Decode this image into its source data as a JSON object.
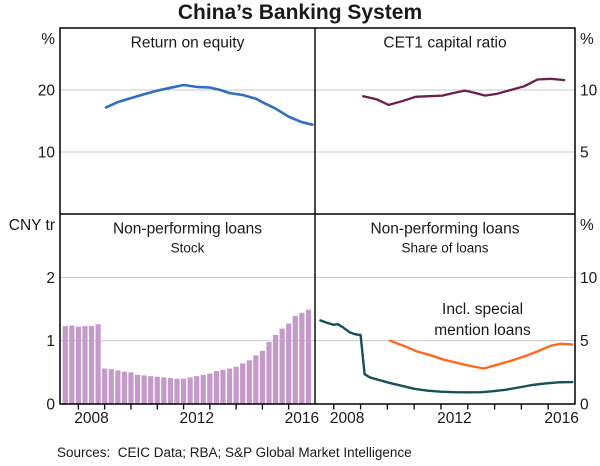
{
  "title": "China’s Banking System",
  "footer": {
    "sources": "Sources:  CEIC Data; RBA; S&P Global Market Intelligence"
  },
  "colors": {
    "blue": "#2f6ec0",
    "maroon": "#6d1e4a",
    "purple": "#c59aca",
    "teal": "#17505a",
    "orange": "#fb6a1d",
    "grid": "#c8c8c8",
    "frame": "#000000",
    "text": "#1a1a1a"
  },
  "chart_data": [
    {
      "id": "return-on-equity",
      "type": "line",
      "title": "Return on equity",
      "subtitle": "",
      "unit": "%",
      "unit_side": "left",
      "ylim": [
        0,
        30
      ],
      "gridlines": [
        10,
        20
      ],
      "yticks": [
        {
          "v": 20,
          "label": "20"
        },
        {
          "v": 10,
          "label": "10"
        }
      ],
      "xlim": [
        2007.3,
        2017.0
      ],
      "xticks": [],
      "xtick_labels": [],
      "series": [
        {
          "id": "roe-line",
          "name": "Return on equity",
          "kind": "line",
          "color": "blue",
          "width": 2.6,
          "points": [
            [
              2009.05,
              17.2
            ],
            [
              2009.5,
              18.05
            ],
            [
              2010.0,
              18.7
            ],
            [
              2010.5,
              19.3
            ],
            [
              2011.0,
              19.9
            ],
            [
              2011.5,
              20.35
            ],
            [
              2012.0,
              20.8
            ],
            [
              2012.5,
              20.5
            ],
            [
              2013.0,
              20.4
            ],
            [
              2013.4,
              20.0
            ],
            [
              2013.75,
              19.5
            ],
            [
              2014.25,
              19.2
            ],
            [
              2014.75,
              18.6
            ],
            [
              2015.1,
              17.8
            ],
            [
              2015.5,
              17.0
            ],
            [
              2016.0,
              15.7
            ],
            [
              2016.5,
              14.8
            ],
            [
              2016.9,
              14.4
            ]
          ]
        }
      ]
    },
    {
      "id": "cet1-capital-ratio",
      "type": "line",
      "title": "CET1 capital ratio",
      "subtitle": "",
      "unit": "%",
      "unit_side": "right",
      "ylim": [
        0,
        15
      ],
      "gridlines": [
        5,
        10
      ],
      "yticks": [
        {
          "v": 10,
          "label": "10"
        },
        {
          "v": 5,
          "label": "5"
        }
      ],
      "xlim": [
        2007.3,
        2017.0
      ],
      "xticks": [],
      "xtick_labels": [],
      "series": [
        {
          "id": "cet1-line",
          "name": "CET1 capital ratio",
          "kind": "line",
          "color": "maroon",
          "width": 2.3,
          "points": [
            [
              2009.1,
              9.5
            ],
            [
              2009.6,
              9.25
            ],
            [
              2010.05,
              8.8
            ],
            [
              2010.55,
              9.1
            ],
            [
              2011.05,
              9.45
            ],
            [
              2011.55,
              9.5
            ],
            [
              2012.05,
              9.55
            ],
            [
              2012.55,
              9.8
            ],
            [
              2012.9,
              9.95
            ],
            [
              2013.3,
              9.75
            ],
            [
              2013.65,
              9.55
            ],
            [
              2014.1,
              9.7
            ],
            [
              2014.6,
              10.0
            ],
            [
              2015.1,
              10.3
            ],
            [
              2015.6,
              10.85
            ],
            [
              2016.1,
              10.9
            ],
            [
              2016.6,
              10.8
            ]
          ]
        }
      ]
    },
    {
      "id": "npl-stock",
      "type": "bar",
      "title": "Non-performing loans",
      "subtitle": "Stock",
      "unit": "CNY tr",
      "unit_side": "left",
      "ylim": [
        0,
        3
      ],
      "gridlines": [
        1,
        2
      ],
      "yticks": [
        {
          "v": 2,
          "label": "2"
        },
        {
          "v": 1,
          "label": "1"
        },
        {
          "v": 0,
          "label": "0"
        }
      ],
      "xlim": [
        2007.3,
        2017.0
      ],
      "xticks": [
        2008,
        2009,
        2010,
        2011,
        2012,
        2013,
        2014,
        2015,
        2016
      ],
      "xtick_labels": [
        {
          "v": 2008.5,
          "label": "2008"
        },
        {
          "v": 2012.5,
          "label": "2012"
        },
        {
          "v": 2016.5,
          "label": "2016"
        }
      ],
      "series": [
        {
          "id": "npl-stock-bars",
          "name": "NPL stock",
          "kind": "bar",
          "color": "purple",
          "bar_width": 5.2,
          "points": [
            [
              2007.5,
              1.23
            ],
            [
              2007.75,
              1.24
            ],
            [
              2008.0,
              1.22
            ],
            [
              2008.25,
              1.23
            ],
            [
              2008.5,
              1.23
            ],
            [
              2008.75,
              1.26
            ],
            [
              2009.0,
              0.56
            ],
            [
              2009.25,
              0.55
            ],
            [
              2009.5,
              0.53
            ],
            [
              2009.75,
              0.51
            ],
            [
              2010.0,
              0.5
            ],
            [
              2010.25,
              0.46
            ],
            [
              2010.5,
              0.45
            ],
            [
              2010.75,
              0.44
            ],
            [
              2011.0,
              0.43
            ],
            [
              2011.25,
              0.42
            ],
            [
              2011.5,
              0.41
            ],
            [
              2011.75,
              0.4
            ],
            [
              2012.0,
              0.4
            ],
            [
              2012.25,
              0.42
            ],
            [
              2012.5,
              0.44
            ],
            [
              2012.75,
              0.46
            ],
            [
              2013.0,
              0.48
            ],
            [
              2013.25,
              0.52
            ],
            [
              2013.5,
              0.54
            ],
            [
              2013.75,
              0.56
            ],
            [
              2014.0,
              0.59
            ],
            [
              2014.25,
              0.64
            ],
            [
              2014.5,
              0.69
            ],
            [
              2014.75,
              0.77
            ],
            [
              2015.0,
              0.84
            ],
            [
              2015.25,
              0.98
            ],
            [
              2015.5,
              1.09
            ],
            [
              2015.75,
              1.19
            ],
            [
              2016.0,
              1.27
            ],
            [
              2016.25,
              1.39
            ],
            [
              2016.5,
              1.44
            ],
            [
              2016.75,
              1.49
            ]
          ]
        }
      ]
    },
    {
      "id": "npl-share",
      "type": "line",
      "title": "Non-performing loans",
      "subtitle": "Share of loans",
      "unit": "%",
      "unit_side": "right",
      "ylim": [
        0,
        15
      ],
      "gridlines": [
        5,
        10
      ],
      "yticks": [
        {
          "v": 10,
          "label": "10"
        },
        {
          "v": 5,
          "label": "5"
        },
        {
          "v": 0,
          "label": "0"
        }
      ],
      "xlim": [
        2007.3,
        2017.0
      ],
      "xticks": [
        2008,
        2009,
        2010,
        2011,
        2012,
        2013,
        2014,
        2015,
        2016
      ],
      "xtick_labels": [
        {
          "v": 2008.5,
          "label": "2008"
        },
        {
          "v": 2012.5,
          "label": "2012"
        },
        {
          "v": 2016.5,
          "label": "2016"
        }
      ],
      "series": [
        {
          "id": "npl-ratio-line",
          "name": "Non-performing loans share",
          "kind": "line",
          "color": "teal",
          "width": 2.4,
          "points": [
            [
              2007.5,
              6.6
            ],
            [
              2007.75,
              6.4
            ],
            [
              2008.0,
              6.25
            ],
            [
              2008.15,
              6.3
            ],
            [
              2008.35,
              6.05
            ],
            [
              2008.6,
              5.65
            ],
            [
              2008.8,
              5.5
            ],
            [
              2009.0,
              5.45
            ],
            [
              2009.15,
              2.35
            ],
            [
              2009.35,
              2.1
            ],
            [
              2009.6,
              1.95
            ],
            [
              2009.85,
              1.8
            ],
            [
              2010.1,
              1.65
            ],
            [
              2010.5,
              1.45
            ],
            [
              2011.0,
              1.2
            ],
            [
              2011.5,
              1.05
            ],
            [
              2012.0,
              0.97
            ],
            [
              2012.5,
              0.93
            ],
            [
              2013.0,
              0.92
            ],
            [
              2013.5,
              0.93
            ],
            [
              2013.9,
              1.0
            ],
            [
              2014.4,
              1.12
            ],
            [
              2014.9,
              1.3
            ],
            [
              2015.4,
              1.5
            ],
            [
              2015.9,
              1.63
            ],
            [
              2016.4,
              1.71
            ],
            [
              2016.9,
              1.73
            ]
          ]
        },
        {
          "id": "npl-special-mention-line",
          "name": "Incl. special mention loans",
          "kind": "line",
          "color": "orange",
          "width": 2.4,
          "points": [
            [
              2010.1,
              5.0
            ],
            [
              2010.6,
              4.6
            ],
            [
              2011.1,
              4.15
            ],
            [
              2011.6,
              3.85
            ],
            [
              2012.1,
              3.5
            ],
            [
              2012.6,
              3.25
            ],
            [
              2013.1,
              3.0
            ],
            [
              2013.6,
              2.8
            ],
            [
              2014.1,
              3.1
            ],
            [
              2014.6,
              3.4
            ],
            [
              2015.1,
              3.75
            ],
            [
              2015.6,
              4.15
            ],
            [
              2016.1,
              4.6
            ],
            [
              2016.45,
              4.75
            ],
            [
              2016.9,
              4.7
            ]
          ]
        }
      ],
      "annotation": {
        "lines": [
          "Incl. special",
          "mention loans"
        ],
        "color": "orange",
        "x": 2013.55,
        "y": 7.1,
        "line_height": 21
      }
    }
  ]
}
